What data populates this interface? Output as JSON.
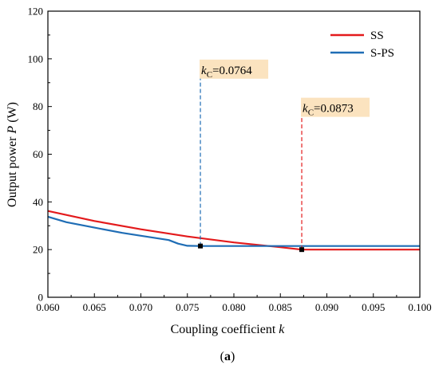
{
  "chart_data": {
    "type": "line",
    "title": "",
    "xlabel_main": "Coupling coefficient ",
    "xlabel_var": "k",
    "ylabel_main": "Output power ",
    "ylabel_var": "P",
    "ylabel_unit": " (W)",
    "xlim": [
      0.06,
      0.1
    ],
    "ylim": [
      0,
      120
    ],
    "xticks": [
      0.06,
      0.065,
      0.07,
      0.075,
      0.08,
      0.085,
      0.09,
      0.095,
      0.1
    ],
    "xtick_labels": [
      "0.060",
      "0.065",
      "0.070",
      "0.075",
      "0.080",
      "0.085",
      "0.090",
      "0.095",
      "0.100"
    ],
    "yticks": [
      0,
      20,
      40,
      60,
      80,
      100,
      120
    ],
    "ytick_labels": [
      "0",
      "20",
      "40",
      "60",
      "80",
      "100",
      "120"
    ],
    "grid": false,
    "legend_position": "top-right",
    "series": [
      {
        "name": "SS",
        "color": "#e31a1c",
        "x": [
          0.06,
          0.065,
          0.07,
          0.075,
          0.08,
          0.085,
          0.0873,
          0.09,
          0.095,
          0.1
        ],
        "y": [
          36.2,
          32.0,
          28.5,
          25.5,
          23.0,
          21.0,
          20.0,
          20.0,
          20.0,
          20.0
        ]
      },
      {
        "name": "S-PS",
        "color": "#1f6db5",
        "x": [
          0.06,
          0.062,
          0.065,
          0.068,
          0.07,
          0.073,
          0.074,
          0.075,
          0.0764,
          0.08,
          0.085,
          0.09,
          0.095,
          0.1
        ],
        "y": [
          33.8,
          31.5,
          29.2,
          27.0,
          25.8,
          24.0,
          22.5,
          21.6,
          21.5,
          21.5,
          21.5,
          21.5,
          21.5,
          21.5
        ]
      }
    ],
    "annotations": [
      {
        "var": "k",
        "sub": "C",
        "value_text": "=0.0764",
        "x": 0.0764,
        "y": 21.5,
        "label_y": 92,
        "color": "#1f6db5"
      },
      {
        "var": "k",
        "sub": "C",
        "value_text": "=0.0873",
        "x": 0.0873,
        "y": 20.0,
        "label_y": 76,
        "color": "#e31a1c"
      }
    ]
  },
  "caption": {
    "open": "(",
    "letter": "a",
    "close": ")"
  }
}
